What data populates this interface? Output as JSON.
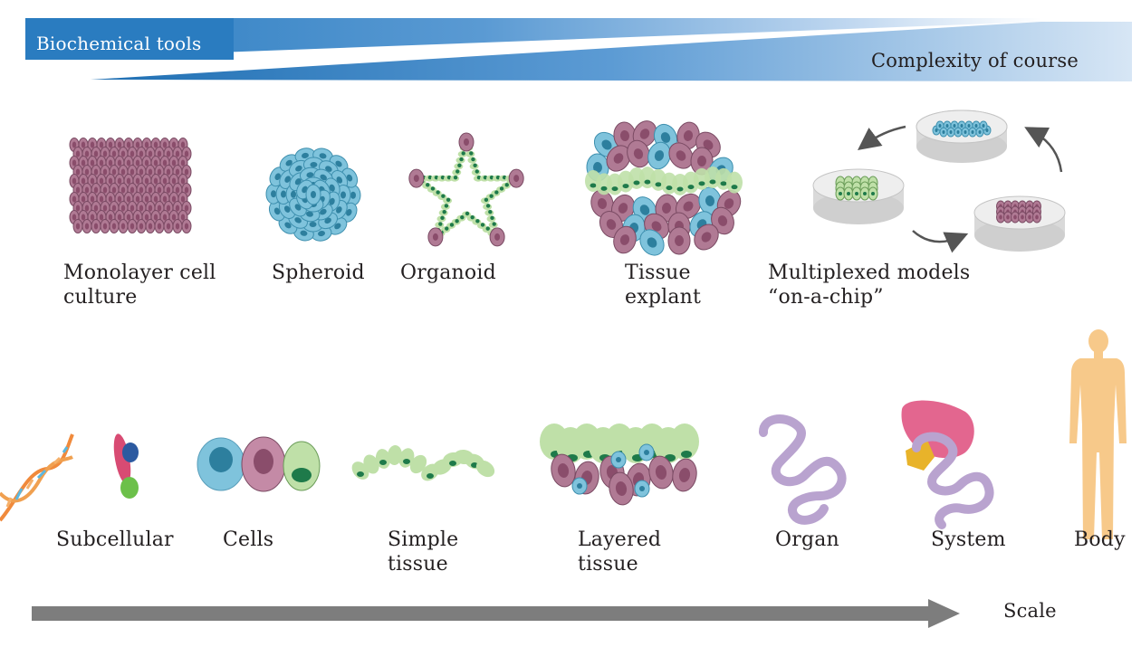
{
  "banner": {
    "label": "Biochemical tools",
    "right_label": "Complexity of course"
  },
  "models_row": [
    {
      "id": "monolayer",
      "label": "Monolayer cell\nculture"
    },
    {
      "id": "spheroid",
      "label": "Spheroid"
    },
    {
      "id": "organoid",
      "label": "Organoid"
    },
    {
      "id": "tissue-explant",
      "label": "Tissue\nexplant"
    },
    {
      "id": "multiplexed",
      "label": "Multiplexed models\n“on-a-chip”"
    }
  ],
  "scale_row": [
    {
      "id": "subcellular",
      "label": "Subcellular"
    },
    {
      "id": "cells",
      "label": "Cells"
    },
    {
      "id": "simple-tissue",
      "label": "Simple\ntissue"
    },
    {
      "id": "layered-tissue",
      "label": "Layered\ntissue"
    },
    {
      "id": "organ",
      "label": "Organ"
    },
    {
      "id": "system",
      "label": "System"
    },
    {
      "id": "body",
      "label": "Body"
    }
  ],
  "scale_axis": {
    "label": "Scale"
  },
  "colors": {
    "banner": "#2f7fc1",
    "mauve": "#b07a94",
    "mauve_dark": "#7a4a63",
    "blue_cell": "#7fc3dc",
    "green_light": "#bfe0a8",
    "green_dark": "#1e7a4a",
    "organ_purple": "#b9a3cf",
    "body_skin": "#f7c98a",
    "arrow_gray": "#7d7d7d"
  }
}
